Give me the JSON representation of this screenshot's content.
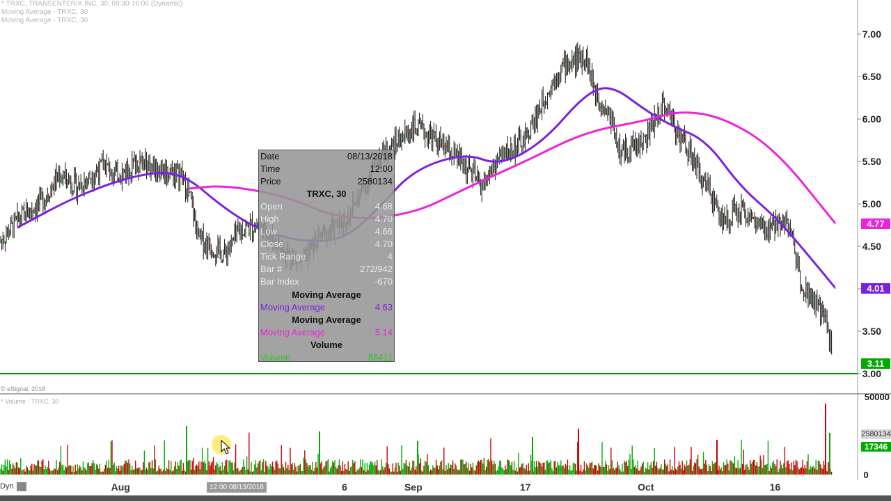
{
  "header": {
    "symbol_line": "* TRXC, TRANSENTERIX INC, 30, 09:30-16:00 (Dynamic)",
    "ma_line_1": "Moving Average - TRXC, 30",
    "ma_line_2": "Moving Average - TRXC, 30"
  },
  "footer": {
    "copyright": "© eSignal, 2018",
    "volume_label": "* Volume - TRXC, 30",
    "dyn_label": "Dyn"
  },
  "colors": {
    "up": "#00aa00",
    "down": "#cc0000",
    "ma_fast": "#7a22e0",
    "ma_slow": "#ee22dd",
    "baseline": "#009900",
    "last_badge": "#00aa00"
  },
  "chart_data": {
    "type": "candlestick",
    "symbol": "TRXC",
    "interval": "30",
    "y_ticks": [
      "7.00",
      "6.50",
      "6.00",
      "5.50",
      "5.00",
      "4.50",
      "4.00",
      "3.50",
      "3.00"
    ],
    "ylim": [
      3.0,
      7.0
    ],
    "x_ticks": [
      "Aug",
      "13",
      "6",
      "Sep",
      "17",
      "Oct",
      "16"
    ],
    "x_tick_dates": [
      "2018-08-01",
      "2018-08-13",
      "2018-08-27",
      "2018-09-04",
      "2018-09-17",
      "2018-10-01",
      "2018-10-16"
    ],
    "x_range": [
      "2018-07-18",
      "2018-10-23"
    ],
    "price_path": [
      [
        "2018-07-18",
        4.55
      ],
      [
        "2018-07-20",
        4.8
      ],
      [
        "2018-07-23",
        5.05
      ],
      [
        "2018-07-25",
        5.35
      ],
      [
        "2018-07-27",
        5.2
      ],
      [
        "2018-07-30",
        5.45
      ],
      [
        "2018-08-01",
        5.35
      ],
      [
        "2018-08-03",
        5.5
      ],
      [
        "2018-08-06",
        5.4
      ],
      [
        "2018-08-08",
        5.35
      ],
      [
        "2018-08-09",
        5.1
      ],
      [
        "2018-08-10",
        4.6
      ],
      [
        "2018-08-13",
        4.4
      ],
      [
        "2018-08-15",
        4.7
      ],
      [
        "2018-08-17",
        4.75
      ],
      [
        "2018-08-20",
        4.45
      ],
      [
        "2018-08-22",
        4.3
      ],
      [
        "2018-08-24",
        4.6
      ],
      [
        "2018-08-27",
        4.8
      ],
      [
        "2018-08-29",
        5.15
      ],
      [
        "2018-08-31",
        5.55
      ],
      [
        "2018-09-04",
        5.9
      ],
      [
        "2018-09-06",
        5.8
      ],
      [
        "2018-09-10",
        5.45
      ],
      [
        "2018-09-12",
        5.2
      ],
      [
        "2018-09-14",
        5.55
      ],
      [
        "2018-09-17",
        5.75
      ],
      [
        "2018-09-19",
        6.2
      ],
      [
        "2018-09-21",
        6.6
      ],
      [
        "2018-09-24",
        6.75
      ],
      [
        "2018-09-25",
        6.35
      ],
      [
        "2018-09-27",
        6.0
      ],
      [
        "2018-09-28",
        5.6
      ],
      [
        "2018-10-01",
        5.75
      ],
      [
        "2018-10-03",
        6.2
      ],
      [
        "2018-10-05",
        5.8
      ],
      [
        "2018-10-08",
        5.2
      ],
      [
        "2018-10-10",
        4.8
      ],
      [
        "2018-10-12",
        4.95
      ],
      [
        "2018-10-15",
        4.65
      ],
      [
        "2018-10-17",
        4.85
      ],
      [
        "2018-10-18",
        4.6
      ],
      [
        "2018-10-19",
        4.1
      ],
      [
        "2018-10-22",
        3.6
      ],
      [
        "2018-10-23",
        3.11
      ]
    ],
    "series": [
      {
        "name": "Moving Average",
        "points": [
          [
            "2018-07-20",
            4.72
          ],
          [
            "2018-07-27",
            5.1
          ],
          [
            "2018-08-03",
            5.35
          ],
          [
            "2018-08-08",
            5.38
          ],
          [
            "2018-08-13",
            4.95
          ],
          [
            "2018-08-17",
            4.7
          ],
          [
            "2018-08-22",
            4.55
          ],
          [
            "2018-08-27",
            4.58
          ],
          [
            "2018-08-31",
            4.95
          ],
          [
            "2018-09-04",
            5.4
          ],
          [
            "2018-09-10",
            5.6
          ],
          [
            "2018-09-14",
            5.45
          ],
          [
            "2018-09-19",
            5.72
          ],
          [
            "2018-09-24",
            6.3
          ],
          [
            "2018-09-27",
            6.4
          ],
          [
            "2018-10-01",
            6.1
          ],
          [
            "2018-10-04",
            5.92
          ],
          [
            "2018-10-08",
            5.75
          ],
          [
            "2018-10-12",
            5.2
          ],
          [
            "2018-10-16",
            4.85
          ],
          [
            "2018-10-19",
            4.5
          ],
          [
            "2018-10-23",
            4.01
          ]
        ]
      },
      {
        "name": "Moving Average",
        "points": [
          [
            "2018-08-09",
            5.18
          ],
          [
            "2018-08-13",
            5.22
          ],
          [
            "2018-08-20",
            5.1
          ],
          [
            "2018-08-27",
            4.8
          ],
          [
            "2018-09-04",
            4.88
          ],
          [
            "2018-09-10",
            5.18
          ],
          [
            "2018-09-17",
            5.5
          ],
          [
            "2018-09-24",
            5.85
          ],
          [
            "2018-10-01",
            5.98
          ],
          [
            "2018-10-05",
            6.1
          ],
          [
            "2018-10-10",
            6.02
          ],
          [
            "2018-10-16",
            5.65
          ],
          [
            "2018-10-23",
            4.77
          ]
        ]
      }
    ],
    "baseline_value": 3.0,
    "last_values": {
      "ma_slow": "4.77",
      "ma_fast": "4.01",
      "last_price": "3.11"
    },
    "volume": {
      "y_ticks": [
        "50000",
        "0"
      ],
      "last_values": [
        "2580134",
        "17346"
      ]
    }
  },
  "tooltip": {
    "rows": [
      {
        "k": "Date",
        "v": "08/13/2018",
        "dim": false
      },
      {
        "k": "Time",
        "v": "12:00",
        "dim": false
      },
      {
        "k": "Price",
        "v": "2580134",
        "dim": false
      }
    ],
    "symbol_title": "TRXC, 30",
    "ohlc": [
      {
        "k": "Open",
        "v": "4.68"
      },
      {
        "k": "High",
        "v": "4.70"
      },
      {
        "k": "Low",
        "v": "4.66"
      },
      {
        "k": "Close",
        "v": "4.70"
      },
      {
        "k": "Tick Range",
        "v": "4"
      },
      {
        "k": "Bar #",
        "v": "272/942"
      },
      {
        "k": "Bar Index",
        "v": "-670"
      }
    ],
    "ma1_title": "Moving Average",
    "ma1_label": "Moving Average",
    "ma1_value": "4.63",
    "ma2_title": "Moving Average",
    "ma2_label": "Moving Average",
    "ma2_value": "5.14",
    "vol_title": "Volume",
    "vol_label": "Volume",
    "vol_value": "86411"
  },
  "xaxis": {
    "cursor_label": "12:00 08/13/2018"
  }
}
